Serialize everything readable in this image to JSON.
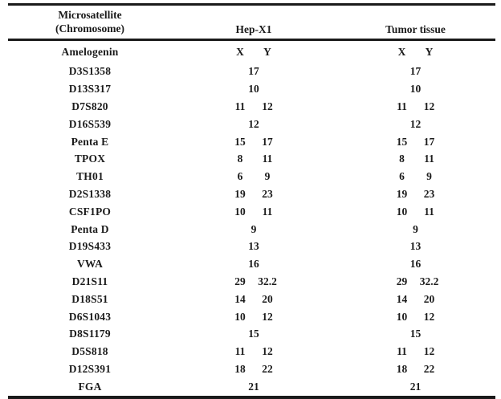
{
  "table": {
    "header": {
      "marker_line1": "Microsatellite",
      "marker_line2": "(Chromosome)",
      "sample1": "Hep-X1",
      "sample2": "Tumor tissue"
    },
    "rows": [
      {
        "marker": "Amelogenin",
        "hep": [
          "X",
          "Y"
        ],
        "tumor": [
          "X",
          "Y"
        ]
      },
      {
        "marker": "D3S1358",
        "hep": [
          "17"
        ],
        "tumor": [
          "17"
        ]
      },
      {
        "marker": "D13S317",
        "hep": [
          "10"
        ],
        "tumor": [
          "10"
        ]
      },
      {
        "marker": "D7S820",
        "hep": [
          "11",
          "12"
        ],
        "tumor": [
          "11",
          "12"
        ]
      },
      {
        "marker": "D16S539",
        "hep": [
          "12"
        ],
        "tumor": [
          "12"
        ]
      },
      {
        "marker": "Penta E",
        "hep": [
          "15",
          "17"
        ],
        "tumor": [
          "15",
          "17"
        ]
      },
      {
        "marker": "TPOX",
        "hep": [
          "8",
          "11"
        ],
        "tumor": [
          "8",
          "11"
        ]
      },
      {
        "marker": "TH01",
        "hep": [
          "6",
          "9"
        ],
        "tumor": [
          "6",
          "9"
        ]
      },
      {
        "marker": "D2S1338",
        "hep": [
          "19",
          "23"
        ],
        "tumor": [
          "19",
          "23"
        ]
      },
      {
        "marker": "CSF1PO",
        "hep": [
          "10",
          "11"
        ],
        "tumor": [
          "10",
          "11"
        ]
      },
      {
        "marker": "Penta D",
        "hep": [
          "9"
        ],
        "tumor": [
          "9"
        ]
      },
      {
        "marker": "D19S433",
        "hep": [
          "13"
        ],
        "tumor": [
          "13"
        ]
      },
      {
        "marker": "VWA",
        "hep": [
          "16"
        ],
        "tumor": [
          "16"
        ]
      },
      {
        "marker": "D21S11",
        "hep": [
          "29",
          "32.2"
        ],
        "tumor": [
          "29",
          "32.2"
        ]
      },
      {
        "marker": "D18S51",
        "hep": [
          "14",
          "20"
        ],
        "tumor": [
          "14",
          "20"
        ]
      },
      {
        "marker": "D6S1043",
        "hep": [
          "10",
          "12"
        ],
        "tumor": [
          "10",
          "12"
        ]
      },
      {
        "marker": "D8S1179",
        "hep": [
          "15"
        ],
        "tumor": [
          "15"
        ]
      },
      {
        "marker": "D5S818",
        "hep": [
          "11",
          "12"
        ],
        "tumor": [
          "11",
          "12"
        ]
      },
      {
        "marker": "D12S391",
        "hep": [
          "18",
          "22"
        ],
        "tumor": [
          "18",
          "22"
        ]
      },
      {
        "marker": "FGA",
        "hep": [
          "21"
        ],
        "tumor": [
          "21"
        ]
      }
    ],
    "colors": {
      "text": "#1b1b1b",
      "rule": "#1a1a1a",
      "background": "#ffffff"
    }
  }
}
